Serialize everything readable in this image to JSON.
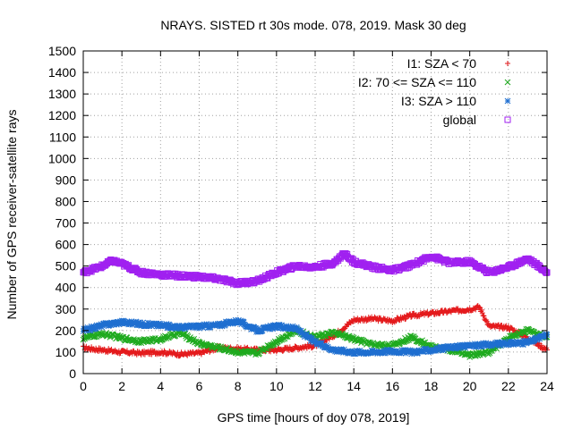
{
  "chart_data": {
    "type": "scatter",
    "title": "NRAYS. SISTED rt 30s mode. 078, 2019. Mask 30 deg",
    "xlabel": "GPS time [hours of doy 078, 2019]",
    "ylabel": "Number of GPS receiver-satellite rays",
    "xlim": [
      0,
      24
    ],
    "ylim": [
      0,
      1500
    ],
    "xticks": [
      0,
      2,
      4,
      6,
      8,
      10,
      12,
      14,
      16,
      18,
      20,
      22,
      24
    ],
    "yticks": [
      0,
      100,
      200,
      300,
      400,
      500,
      600,
      700,
      800,
      900,
      1000,
      1100,
      1200,
      1300,
      1400,
      1500
    ],
    "grid": true,
    "legend_position": "top-right",
    "series": [
      {
        "name": "I1: SZA < 70",
        "marker": "plus",
        "color": "#e41a1c",
        "x": [
          0,
          1,
          2,
          3,
          4,
          5,
          6,
          7,
          8,
          9,
          10,
          11,
          12,
          13,
          14,
          15,
          16,
          17,
          18,
          19,
          20,
          20.5,
          21,
          22,
          23,
          24
        ],
        "y": [
          120,
          110,
          100,
          95,
          100,
          90,
          95,
          120,
          115,
          110,
          110,
          120,
          130,
          180,
          250,
          255,
          245,
          270,
          280,
          290,
          300,
          310,
          220,
          215,
          165,
          110
        ]
      },
      {
        "name": "I2: 70 <= SZA <= 110",
        "marker": "x",
        "color": "#1faa1f",
        "x": [
          0,
          1,
          2,
          3,
          4,
          5,
          6,
          7,
          8,
          9,
          10,
          11,
          12,
          13,
          14,
          15,
          16,
          17,
          18,
          19,
          20,
          21,
          22,
          23,
          24
        ],
        "y": [
          165,
          185,
          165,
          150,
          160,
          190,
          140,
          120,
          100,
          95,
          150,
          200,
          170,
          190,
          160,
          135,
          130,
          170,
          125,
          110,
          85,
          100,
          165,
          200,
          170
        ]
      },
      {
        "name": "I3: SZA > 110",
        "marker": "star",
        "color": "#1f6fd0",
        "x": [
          0,
          1,
          2,
          3,
          4,
          5,
          6,
          7,
          8,
          9,
          10,
          11,
          12,
          13,
          14,
          15,
          16,
          17,
          18,
          19,
          20,
          21,
          22,
          23,
          24
        ],
        "y": [
          200,
          225,
          240,
          230,
          225,
          215,
          220,
          225,
          245,
          200,
          220,
          210,
          145,
          110,
          100,
          100,
          105,
          100,
          110,
          120,
          130,
          135,
          140,
          145,
          180
        ]
      },
      {
        "name": "global",
        "marker": "square",
        "color": "#a020f0",
        "x": [
          0,
          1,
          1.5,
          2,
          3,
          4,
          5,
          6,
          7,
          8,
          9,
          10,
          11,
          12,
          13,
          13.5,
          14,
          15,
          16,
          17,
          18,
          19,
          20,
          21,
          22,
          23,
          24
        ],
        "y": [
          470,
          500,
          525,
          510,
          470,
          460,
          455,
          450,
          440,
          420,
          430,
          470,
          500,
          495,
          515,
          560,
          520,
          495,
          480,
          505,
          545,
          515,
          520,
          470,
          495,
          535,
          470
        ]
      }
    ]
  }
}
